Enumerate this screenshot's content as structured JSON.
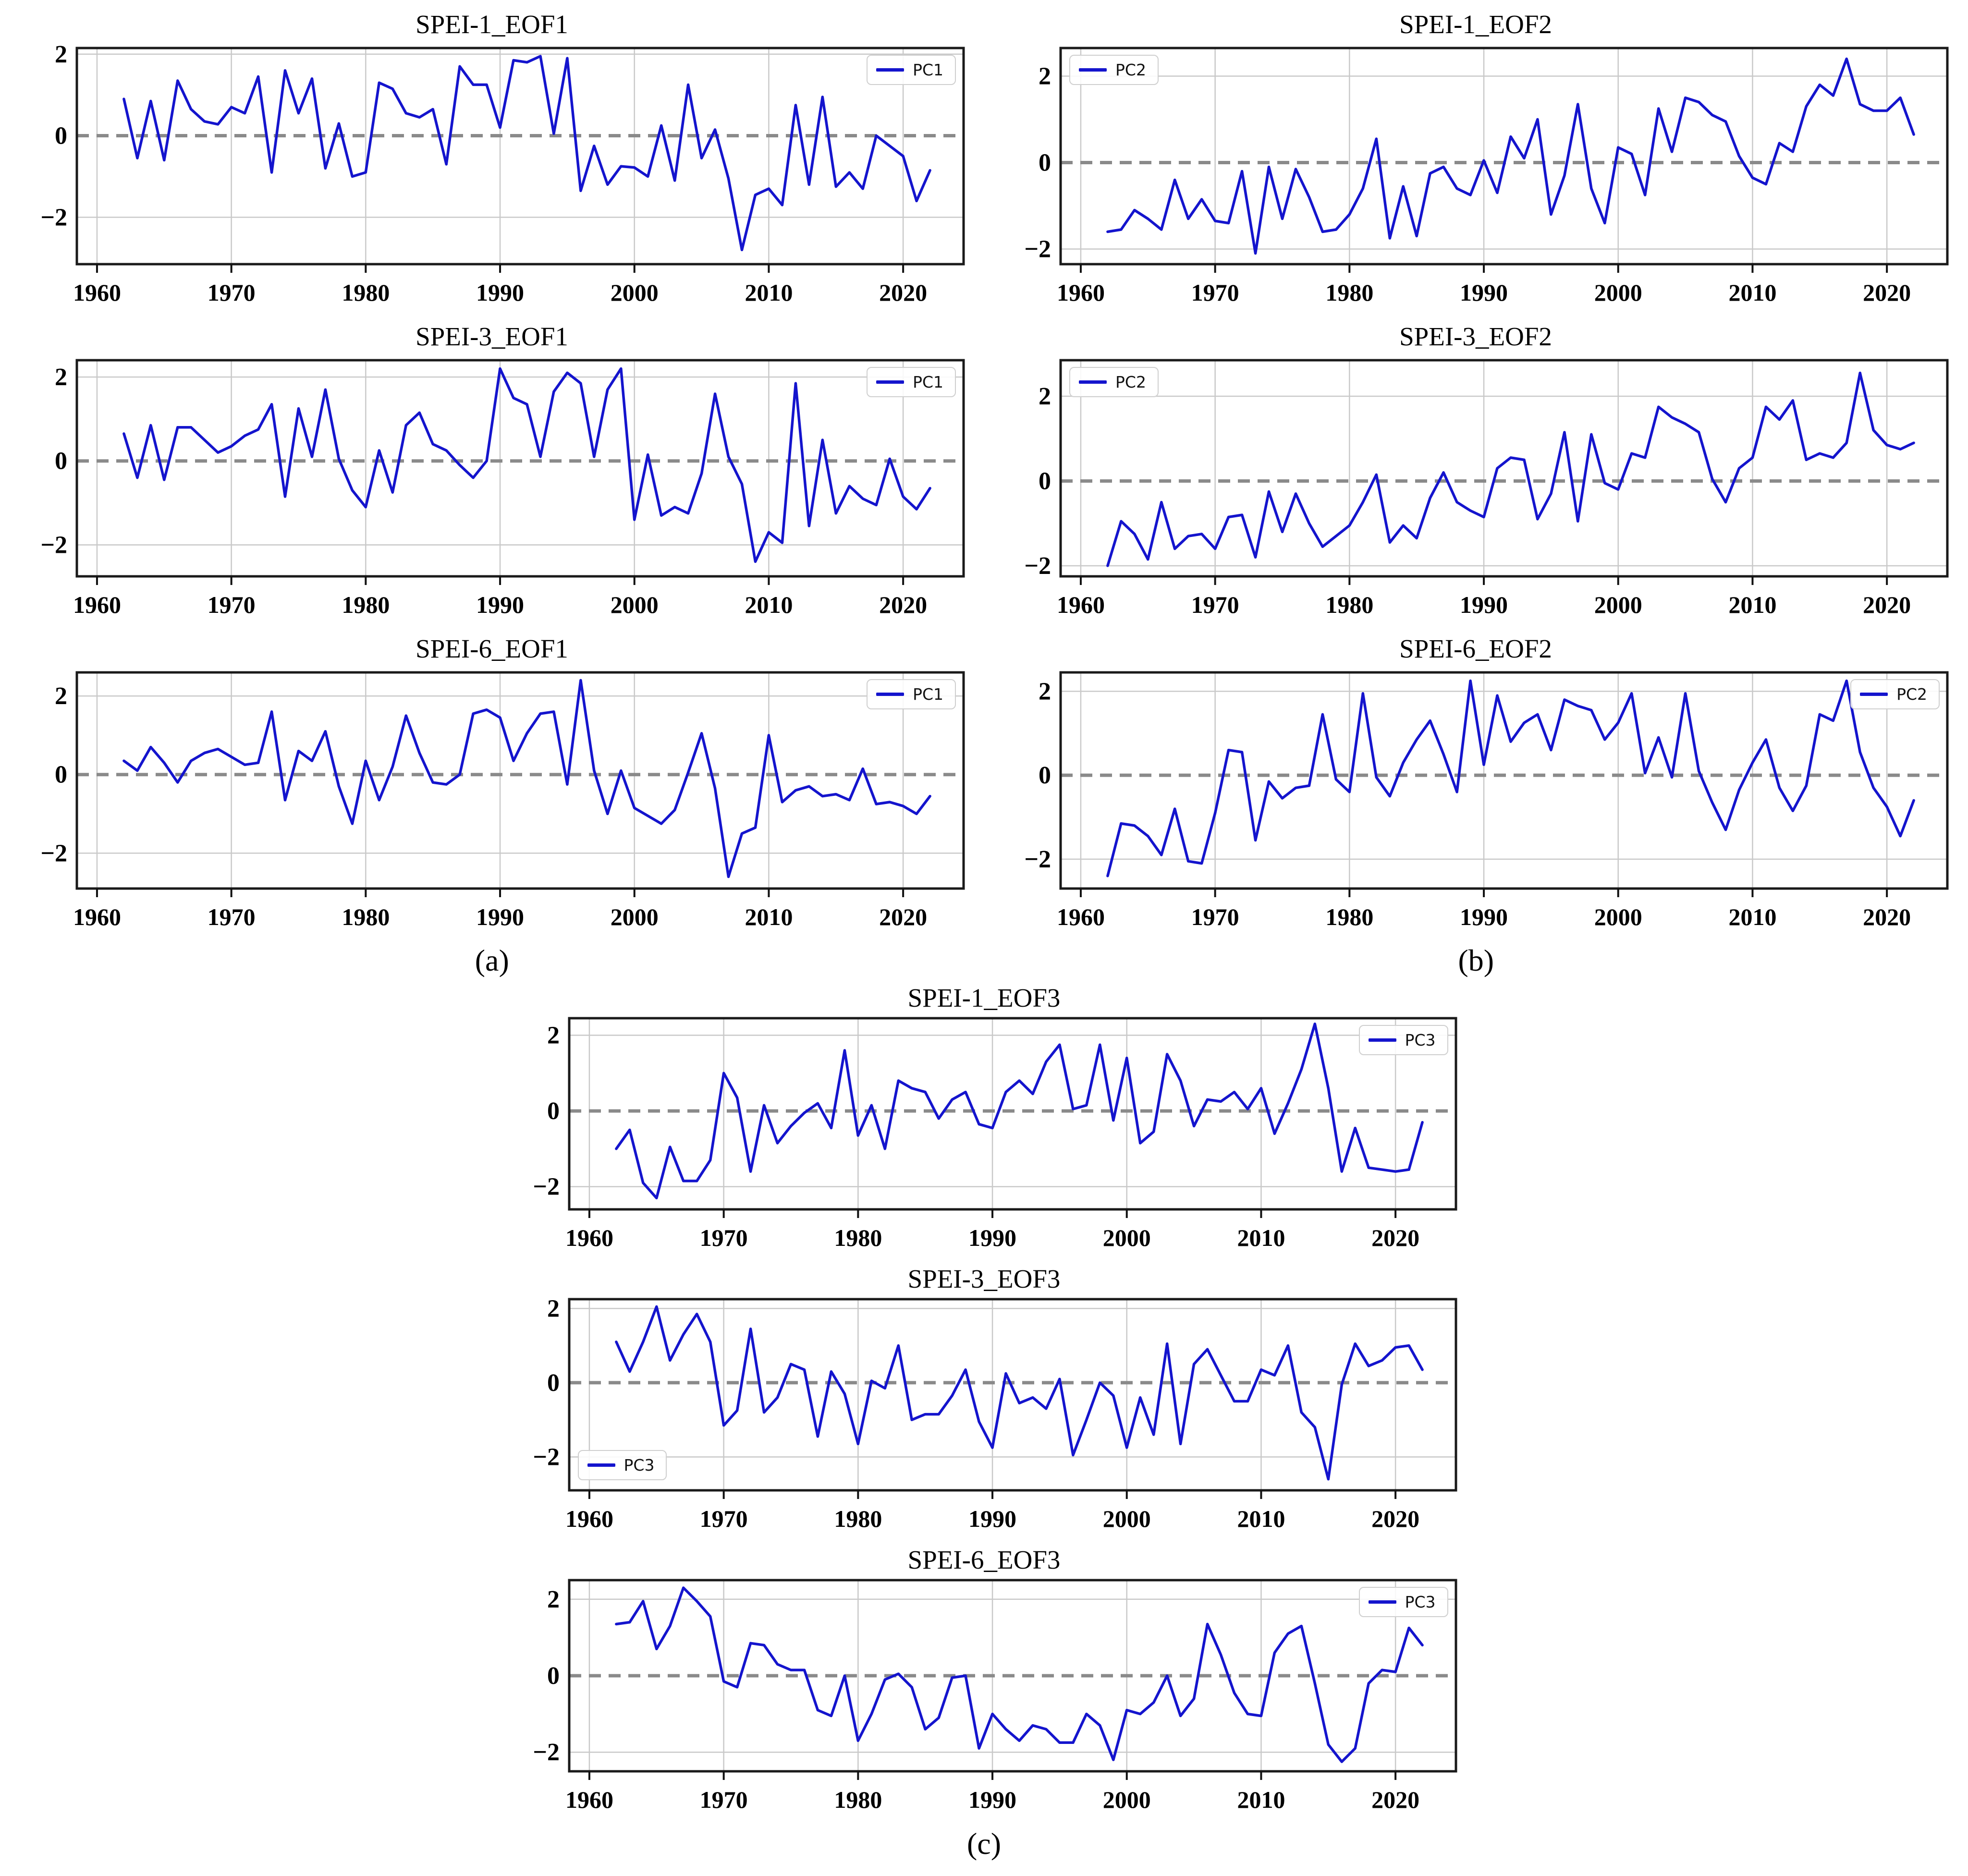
{
  "figure": {
    "background": "#ffffff",
    "panel_labels": {
      "a": "(a)",
      "b": "(b)",
      "c": "(c)"
    },
    "colors": {
      "line": "#1414cd",
      "zero_line": "#8a8a8a",
      "grid": "#c9c9c9",
      "spine": "#1a1a1a",
      "legend_border": "#cfcfcf",
      "tick_text": "#000000"
    }
  },
  "chart_data": [
    {
      "type": "line",
      "panel": "a",
      "title": "SPEI-1_EOF1",
      "legend_label": "PC1",
      "legend_position": "top-right",
      "grid": true,
      "zero_line_dashed": true,
      "x_start": 1962,
      "x_end": 2022,
      "x_step": 1,
      "xlim": [
        1958.5,
        2024.5
      ],
      "ylim": [
        -3.15,
        2.15
      ],
      "xticks": [
        1960,
        1970,
        1980,
        1990,
        2000,
        2010,
        2020
      ],
      "xtick_labels": [
        "1960",
        "1970",
        "1980",
        "1990",
        "2000",
        "2010",
        "2020"
      ],
      "yticks": [
        2,
        0,
        -2
      ],
      "ytick_labels": [
        "2",
        "0",
        "−2"
      ],
      "values": [
        0.9,
        -0.55,
        0.85,
        -0.6,
        1.35,
        0.65,
        0.35,
        0.28,
        0.7,
        0.55,
        1.45,
        -0.9,
        1.6,
        0.55,
        1.4,
        -0.8,
        0.3,
        -1.0,
        -0.9,
        1.3,
        1.15,
        0.55,
        0.45,
        0.65,
        -0.7,
        1.7,
        1.25,
        1.25,
        0.2,
        1.85,
        1.8,
        1.95,
        0.05,
        1.9,
        -1.35,
        -0.25,
        -1.2,
        -0.75,
        -0.78,
        -1.0,
        0.25,
        -1.1,
        1.25,
        -0.55,
        0.15,
        -1.05,
        -2.8,
        -1.45,
        -1.3,
        -1.7,
        0.75,
        -1.2,
        0.95,
        -1.25,
        -0.9,
        -1.3,
        0.0,
        -0.25,
        -0.5,
        -1.6,
        -0.85
      ]
    },
    {
      "type": "line",
      "panel": "a",
      "title": "SPEI-3_EOF1",
      "legend_label": "PC1",
      "legend_position": "top-right",
      "grid": true,
      "zero_line_dashed": true,
      "x_start": 1962,
      "x_end": 2022,
      "x_step": 1,
      "xlim": [
        1958.5,
        2024.5
      ],
      "ylim": [
        -2.75,
        2.4
      ],
      "xticks": [
        1960,
        1970,
        1980,
        1990,
        2000,
        2010,
        2020
      ],
      "xtick_labels": [
        "1960",
        "1970",
        "1980",
        "1990",
        "2000",
        "2010",
        "2020"
      ],
      "yticks": [
        2,
        0,
        -2
      ],
      "ytick_labels": [
        "2",
        "0",
        "−2"
      ],
      "values": [
        0.65,
        -0.4,
        0.85,
        -0.45,
        0.8,
        0.8,
        0.5,
        0.2,
        0.35,
        0.6,
        0.75,
        1.35,
        -0.85,
        1.25,
        0.1,
        1.7,
        0.05,
        -0.7,
        -1.1,
        0.25,
        -0.75,
        0.85,
        1.15,
        0.4,
        0.25,
        -0.1,
        -0.4,
        0.0,
        2.2,
        1.5,
        1.35,
        0.1,
        1.65,
        2.1,
        1.85,
        0.1,
        1.7,
        2.2,
        -1.4,
        0.15,
        -1.3,
        -1.1,
        -1.25,
        -0.3,
        1.6,
        0.1,
        -0.55,
        -2.4,
        -1.7,
        -1.95,
        1.85,
        -1.55,
        0.5,
        -1.25,
        -0.6,
        -0.9,
        -1.05,
        0.05,
        -0.85,
        -1.15,
        -0.65
      ]
    },
    {
      "type": "line",
      "panel": "a",
      "title": "SPEI-6_EOF1",
      "legend_label": "PC1",
      "legend_position": "top-right",
      "grid": true,
      "zero_line_dashed": true,
      "x_start": 1962,
      "x_end": 2022,
      "x_step": 1,
      "xlim": [
        1958.5,
        2024.5
      ],
      "ylim": [
        -2.9,
        2.6
      ],
      "xticks": [
        1960,
        1970,
        1980,
        1990,
        2000,
        2010,
        2020
      ],
      "xtick_labels": [
        "1960",
        "1970",
        "1980",
        "1990",
        "2000",
        "2010",
        "2020"
      ],
      "yticks": [
        2,
        0,
        -2
      ],
      "ytick_labels": [
        "2",
        "0",
        "−2"
      ],
      "values": [
        0.35,
        0.1,
        0.7,
        0.3,
        -0.2,
        0.35,
        0.55,
        0.65,
        0.45,
        0.25,
        0.3,
        1.6,
        -0.65,
        0.6,
        0.35,
        1.1,
        -0.3,
        -1.25,
        0.35,
        -0.65,
        0.2,
        1.5,
        0.55,
        -0.2,
        -0.25,
        0.0,
        1.55,
        1.65,
        1.45,
        0.35,
        1.05,
        1.55,
        1.6,
        -0.25,
        2.4,
        0.1,
        -1.0,
        0.1,
        -0.85,
        -1.05,
        -1.25,
        -0.9,
        0.05,
        1.05,
        -0.35,
        -2.6,
        -1.5,
        -1.35,
        1.0,
        -0.7,
        -0.4,
        -0.3,
        -0.55,
        -0.5,
        -0.65,
        0.15,
        -0.75,
        -0.7,
        -0.8,
        -1.0,
        -0.55
      ]
    },
    {
      "type": "line",
      "panel": "b",
      "title": "SPEI-1_EOF2",
      "legend_label": "PC2",
      "legend_position": "top-left",
      "grid": true,
      "zero_line_dashed": true,
      "x_start": 1962,
      "x_end": 2022,
      "x_step": 1,
      "xlim": [
        1958.5,
        2024.5
      ],
      "ylim": [
        -2.35,
        2.65
      ],
      "xticks": [
        1960,
        1970,
        1980,
        1990,
        2000,
        2010,
        2020
      ],
      "xtick_labels": [
        "1960",
        "1970",
        "1980",
        "1990",
        "2000",
        "2010",
        "2020"
      ],
      "yticks": [
        2,
        0,
        -2
      ],
      "ytick_labels": [
        "2",
        "0",
        "−2"
      ],
      "values": [
        -1.6,
        -1.55,
        -1.1,
        -1.3,
        -1.55,
        -0.4,
        -1.3,
        -0.85,
        -1.35,
        -1.4,
        -0.2,
        -2.1,
        -0.1,
        -1.3,
        -0.15,
        -0.8,
        -1.6,
        -1.55,
        -1.2,
        -0.6,
        0.55,
        -1.75,
        -0.55,
        -1.7,
        -0.25,
        -0.1,
        -0.6,
        -0.75,
        0.05,
        -0.7,
        0.6,
        0.1,
        1.0,
        -1.2,
        -0.3,
        1.35,
        -0.6,
        -1.4,
        0.35,
        0.2,
        -0.75,
        1.25,
        0.25,
        1.5,
        1.4,
        1.1,
        0.95,
        0.15,
        -0.35,
        -0.5,
        0.45,
        0.25,
        1.3,
        1.8,
        1.55,
        2.4,
        1.35,
        1.2,
        1.2,
        1.5,
        0.65
      ]
    },
    {
      "type": "line",
      "panel": "b",
      "title": "SPEI-3_EOF2",
      "legend_label": "PC2",
      "legend_position": "top-left",
      "grid": true,
      "zero_line_dashed": true,
      "x_start": 1962,
      "x_end": 2022,
      "x_step": 1,
      "xlim": [
        1958.5,
        2024.5
      ],
      "ylim": [
        -2.25,
        2.85
      ],
      "xticks": [
        1960,
        1970,
        1980,
        1990,
        2000,
        2010,
        2020
      ],
      "xtick_labels": [
        "1960",
        "1970",
        "1980",
        "1990",
        "2000",
        "2010",
        "2020"
      ],
      "yticks": [
        2,
        0,
        -2
      ],
      "ytick_labels": [
        "2",
        "0",
        "−2"
      ],
      "values": [
        -2.0,
        -0.95,
        -1.25,
        -1.85,
        -0.5,
        -1.6,
        -1.3,
        -1.25,
        -1.6,
        -0.85,
        -0.8,
        -1.8,
        -0.25,
        -1.2,
        -0.3,
        -1.0,
        -1.55,
        -1.3,
        -1.05,
        -0.5,
        0.15,
        -1.45,
        -1.05,
        -1.35,
        -0.4,
        0.2,
        -0.5,
        -0.7,
        -0.85,
        0.3,
        0.55,
        0.5,
        -0.9,
        -0.3,
        1.15,
        -0.95,
        1.1,
        -0.05,
        -0.2,
        0.65,
        0.55,
        1.75,
        1.5,
        1.35,
        1.15,
        0.05,
        -0.5,
        0.3,
        0.55,
        1.75,
        1.45,
        1.9,
        0.5,
        0.65,
        0.55,
        0.9,
        2.55,
        1.2,
        0.85,
        0.75,
        0.9
      ]
    },
    {
      "type": "line",
      "panel": "b",
      "title": "SPEI-6_EOF2",
      "legend_label": "PC2",
      "legend_position": "top-right",
      "grid": true,
      "zero_line_dashed": true,
      "x_start": 1962,
      "x_end": 2022,
      "x_step": 1,
      "xlim": [
        1958.5,
        2024.5
      ],
      "ylim": [
        -2.7,
        2.45
      ],
      "xticks": [
        1960,
        1970,
        1980,
        1990,
        2000,
        2010,
        2020
      ],
      "xtick_labels": [
        "1960",
        "1970",
        "1980",
        "1990",
        "2000",
        "2010",
        "2020"
      ],
      "yticks": [
        2,
        0,
        -2
      ],
      "ytick_labels": [
        "2",
        "0",
        "−2"
      ],
      "values": [
        -2.4,
        -1.15,
        -1.2,
        -1.45,
        -1.9,
        -0.8,
        -2.05,
        -2.1,
        -0.9,
        0.6,
        0.55,
        -1.55,
        -0.15,
        -0.55,
        -0.3,
        -0.25,
        1.45,
        -0.1,
        -0.4,
        1.95,
        -0.05,
        -0.5,
        0.3,
        0.85,
        1.3,
        0.5,
        -0.4,
        2.25,
        0.25,
        1.9,
        0.8,
        1.25,
        1.45,
        0.6,
        1.8,
        1.65,
        1.55,
        0.85,
        1.25,
        1.95,
        0.05,
        0.9,
        -0.05,
        1.95,
        0.1,
        -0.65,
        -1.3,
        -0.35,
        0.3,
        0.85,
        -0.3,
        -0.85,
        -0.25,
        1.45,
        1.3,
        2.25,
        0.55,
        -0.3,
        -0.75,
        -1.45,
        -0.6
      ]
    },
    {
      "type": "line",
      "panel": "c",
      "title": "SPEI-1_EOF3",
      "legend_label": "PC3",
      "legend_position": "top-right",
      "grid": true,
      "zero_line_dashed": true,
      "x_start": 1962,
      "x_end": 2022,
      "x_step": 1,
      "xlim": [
        1958.5,
        2024.5
      ],
      "ylim": [
        -2.6,
        2.45
      ],
      "xticks": [
        1960,
        1970,
        1980,
        1990,
        2000,
        2010,
        2020
      ],
      "xtick_labels": [
        "1960",
        "1970",
        "1980",
        "1990",
        "2000",
        "2010",
        "2020"
      ],
      "yticks": [
        2,
        0,
        -2
      ],
      "ytick_labels": [
        "2",
        "0",
        "−2"
      ],
      "values": [
        -1.0,
        -0.5,
        -1.9,
        -2.3,
        -0.95,
        -1.85,
        -1.85,
        -1.3,
        1.0,
        0.35,
        -1.6,
        0.15,
        -0.85,
        -0.4,
        -0.05,
        0.2,
        -0.45,
        1.6,
        -0.65,
        0.15,
        -1.0,
        0.8,
        0.6,
        0.5,
        -0.2,
        0.3,
        0.5,
        -0.35,
        -0.45,
        0.5,
        0.8,
        0.45,
        1.3,
        1.75,
        0.05,
        0.15,
        1.75,
        -0.25,
        1.4,
        -0.85,
        -0.55,
        1.5,
        0.8,
        -0.4,
        0.3,
        0.25,
        0.5,
        0.05,
        0.6,
        -0.6,
        0.2,
        1.1,
        2.3,
        0.6,
        -1.6,
        -0.45,
        -1.5,
        -1.55,
        -1.6,
        -1.55,
        -0.3
      ]
    },
    {
      "type": "line",
      "panel": "c",
      "title": "SPEI-3_EOF3",
      "legend_label": "PC3",
      "legend_position": "bottom-left",
      "grid": true,
      "zero_line_dashed": true,
      "x_start": 1962,
      "x_end": 2022,
      "x_step": 1,
      "xlim": [
        1958.5,
        2024.5
      ],
      "ylim": [
        -2.9,
        2.25
      ],
      "xticks": [
        1960,
        1970,
        1980,
        1990,
        2000,
        2010,
        2020
      ],
      "xtick_labels": [
        "1960",
        "1970",
        "1980",
        "1990",
        "2000",
        "2010",
        "2020"
      ],
      "yticks": [
        2,
        0,
        -2
      ],
      "ytick_labels": [
        "2",
        "0",
        "−2"
      ],
      "values": [
        1.1,
        0.3,
        1.1,
        2.05,
        0.6,
        1.3,
        1.85,
        1.1,
        -1.15,
        -0.75,
        1.45,
        -0.8,
        -0.4,
        0.5,
        0.35,
        -1.45,
        0.3,
        -0.3,
        -1.65,
        0.05,
        -0.15,
        1.0,
        -1.0,
        -0.85,
        -0.85,
        -0.35,
        0.35,
        -1.05,
        -1.75,
        0.25,
        -0.55,
        -0.4,
        -0.7,
        0.1,
        -1.95,
        -1.0,
        0.0,
        -0.35,
        -1.75,
        -0.4,
        -1.4,
        1.05,
        -1.65,
        0.5,
        0.9,
        0.2,
        -0.5,
        -0.5,
        0.35,
        0.2,
        1.0,
        -0.8,
        -1.2,
        -2.6,
        -0.05,
        1.05,
        0.45,
        0.6,
        0.95,
        1.0,
        0.35
      ]
    },
    {
      "type": "line",
      "panel": "c",
      "title": "SPEI-6_EOF3",
      "legend_label": "PC3",
      "legend_position": "top-right",
      "grid": true,
      "zero_line_dashed": true,
      "x_start": 1962,
      "x_end": 2022,
      "x_step": 1,
      "xlim": [
        1958.5,
        2024.5
      ],
      "ylim": [
        -2.5,
        2.5
      ],
      "xticks": [
        1960,
        1970,
        1980,
        1990,
        2000,
        2010,
        2020
      ],
      "xtick_labels": [
        "1960",
        "1970",
        "1980",
        "1990",
        "2000",
        "2010",
        "2020"
      ],
      "yticks": [
        2,
        0,
        -2
      ],
      "ytick_labels": [
        "2",
        "0",
        "−2"
      ],
      "values": [
        1.35,
        1.4,
        1.95,
        0.7,
        1.3,
        2.3,
        1.95,
        1.55,
        -0.15,
        -0.3,
        0.85,
        0.8,
        0.3,
        0.15,
        0.15,
        -0.9,
        -1.05,
        0.0,
        -1.7,
        -1.0,
        -0.1,
        0.05,
        -0.3,
        -1.4,
        -1.1,
        -0.05,
        0.0,
        -1.9,
        -1.0,
        -1.4,
        -1.7,
        -1.3,
        -1.4,
        -1.75,
        -1.75,
        -1.0,
        -1.3,
        -2.2,
        -0.9,
        -1.0,
        -0.7,
        0.0,
        -1.05,
        -0.6,
        1.35,
        0.55,
        -0.45,
        -1.0,
        -1.05,
        0.6,
        1.1,
        1.3,
        -0.2,
        -1.8,
        -2.25,
        -1.9,
        -0.2,
        0.15,
        0.1,
        1.25,
        0.8
      ]
    }
  ]
}
